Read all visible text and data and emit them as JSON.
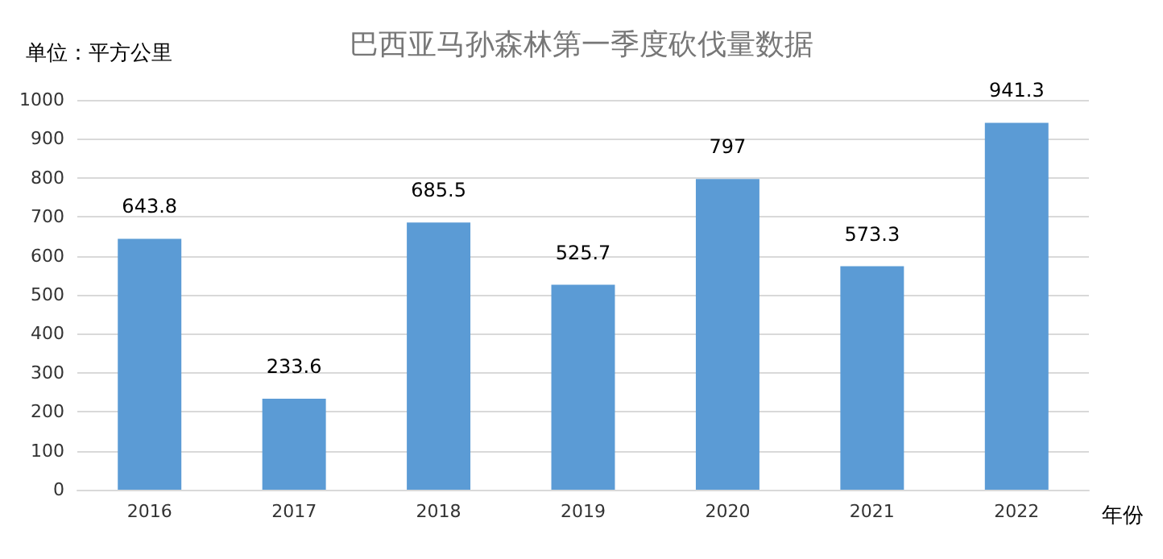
{
  "chart_data": {
    "type": "bar",
    "title": "巴西亚马孙森林第一季度砍伐量数据",
    "ylabel": "单位：平方公里",
    "xlabel": "年份",
    "categories": [
      "2016",
      "2017",
      "2018",
      "2019",
      "2020",
      "2021",
      "2022"
    ],
    "values": [
      643.8,
      233.6,
      685.5,
      525.7,
      797,
      573.3,
      941.3
    ],
    "color": "#5b9bd5",
    "ylim": [
      0,
      1000
    ],
    "yticks": [
      0,
      100,
      200,
      300,
      400,
      500,
      600,
      700,
      800,
      900,
      1000
    ],
    "grid": "y",
    "data_labels": true
  }
}
